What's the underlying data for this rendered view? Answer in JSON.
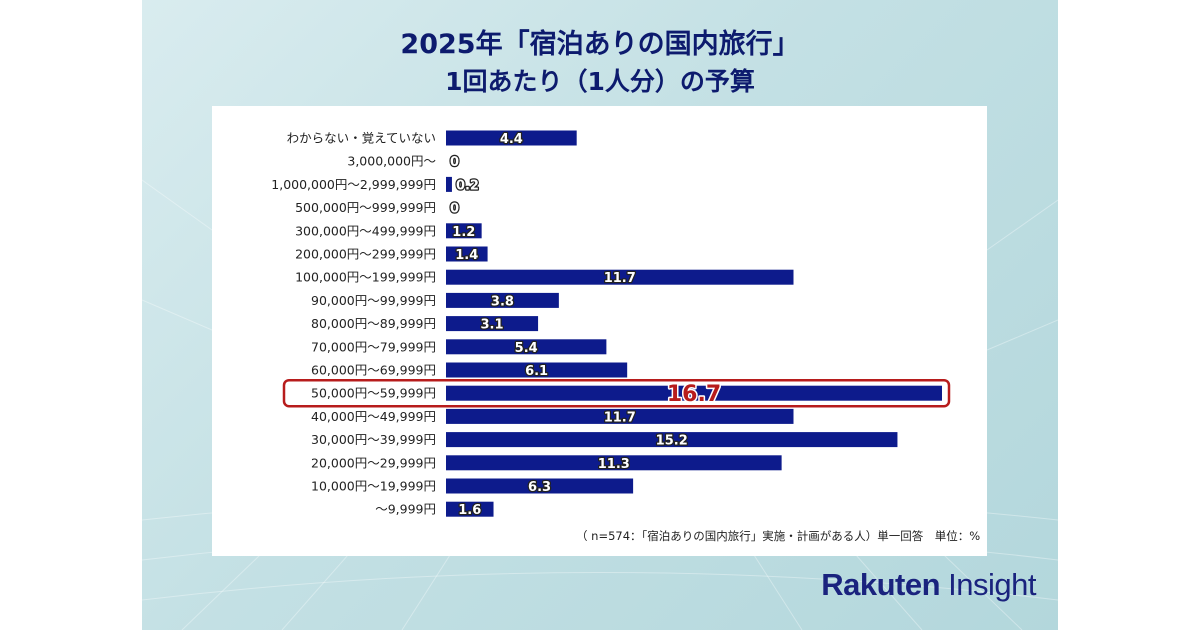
{
  "title": {
    "line1": "2025年「宿泊ありの国内旅行」",
    "line2": "1回あたり（1人分）の予算"
  },
  "chart_data": {
    "type": "bar",
    "orientation": "horizontal",
    "categories": [
      "わからない・覚えていない",
      "3,000,000円～",
      "1,000,000円～2,999,999円",
      "500,000円～999,999円",
      "300,000円～499,999円",
      "200,000円～299,999円",
      "100,000円～199,999円",
      "90,000円～99,999円",
      "80,000円～89,999円",
      "70,000円～79,999円",
      "60,000円～69,999円",
      "50,000円～59,999円",
      "40,000円～49,999円",
      "30,000円～39,999円",
      "20,000円～29,999円",
      "10,000円～19,999円",
      "～9,999円"
    ],
    "values": [
      4.4,
      0,
      0.2,
      0,
      1.2,
      1.4,
      11.7,
      3.8,
      3.1,
      5.4,
      6.1,
      16.7,
      11.7,
      15.2,
      11.3,
      6.3,
      1.6
    ],
    "value_labels": [
      "4.4",
      "0",
      "0.2",
      "0",
      "1.2",
      "1.4",
      "11.7",
      "3.8",
      "3.1",
      "5.4",
      "6.1",
      "16.7",
      "11.7",
      "15.2",
      "11.3",
      "6.3",
      "1.6"
    ],
    "highlight_category": "50,000円～59,999円",
    "bar_color": "#0d1b8c",
    "highlight_color": "#b71c1c",
    "footnote": "（ n=574：「宿泊ありの国内旅行」実施・計画がある人）単一回答　単位：%"
  },
  "logo": {
    "part1": "Rakuten",
    "part2": " Insight"
  }
}
